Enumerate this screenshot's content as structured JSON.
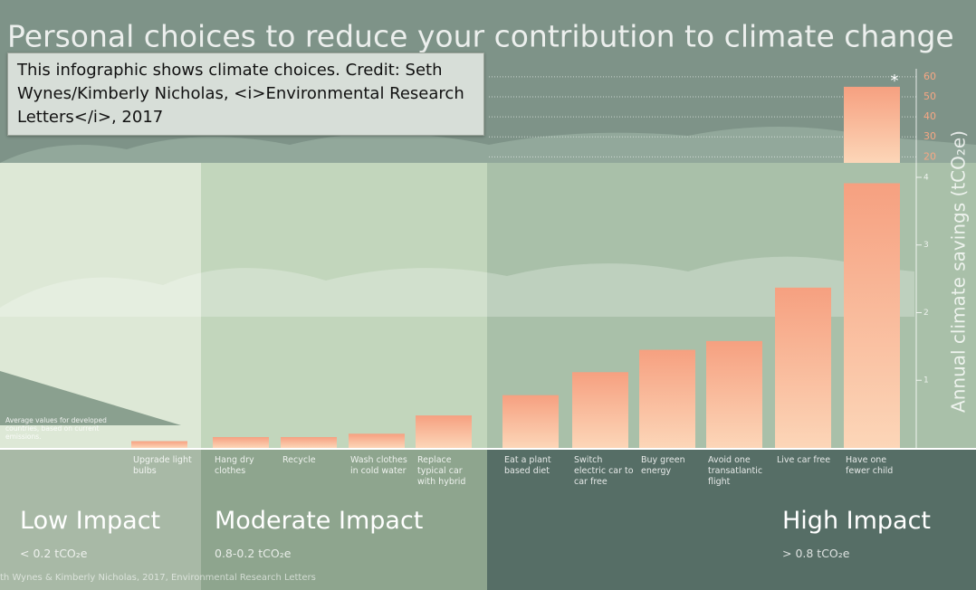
{
  "tooltip": "This infographic shows climate choices. Credit: Seth Wynes/Kimberly Nicholas, <i>Environmental Research Letters</i>, 2017",
  "chart_data": {
    "type": "bar",
    "title": "Personal choices to reduce your contribution to climate change",
    "ylabel": "Annual climate savings (tCO₂e)",
    "note": "Average values for developed countries, based on current emissions.",
    "source": "th Wynes & Kimberly Nicholas, 2017, Environmental Research Letters",
    "categories": [
      "Upgrade light bulbs",
      "Hang dry clothes",
      "Recycle",
      "Wash clothes in cold water",
      "Replace typical car with hybrid",
      "Eat a plant based diet",
      "Switch electric car to car free",
      "Buy green energy",
      "Avoid one transatlantic flight",
      "Live car free",
      "Have one fewer child"
    ],
    "values": [
      0.1,
      0.16,
      0.16,
      0.21,
      0.48,
      0.78,
      1.12,
      1.45,
      1.58,
      2.37,
      55
    ],
    "annotations": [
      {
        "category": 10,
        "text": "*"
      }
    ],
    "color": "#f6a080",
    "ylim": [
      0,
      4.1
    ],
    "yticks": [
      1,
      2,
      3,
      4
    ],
    "y2lim": [
      17,
      64
    ],
    "y2ticks": [
      20,
      30,
      40,
      50,
      60
    ],
    "grid": true,
    "impact_groups": [
      {
        "label": "Low Impact",
        "range": "< 0.2 tCO₂e"
      },
      {
        "label": "Moderate Impact",
        "range": "0.8-0.2 tCO₂e"
      },
      {
        "label": "High Impact",
        "range": "> 0.8 tCO₂e"
      }
    ]
  }
}
